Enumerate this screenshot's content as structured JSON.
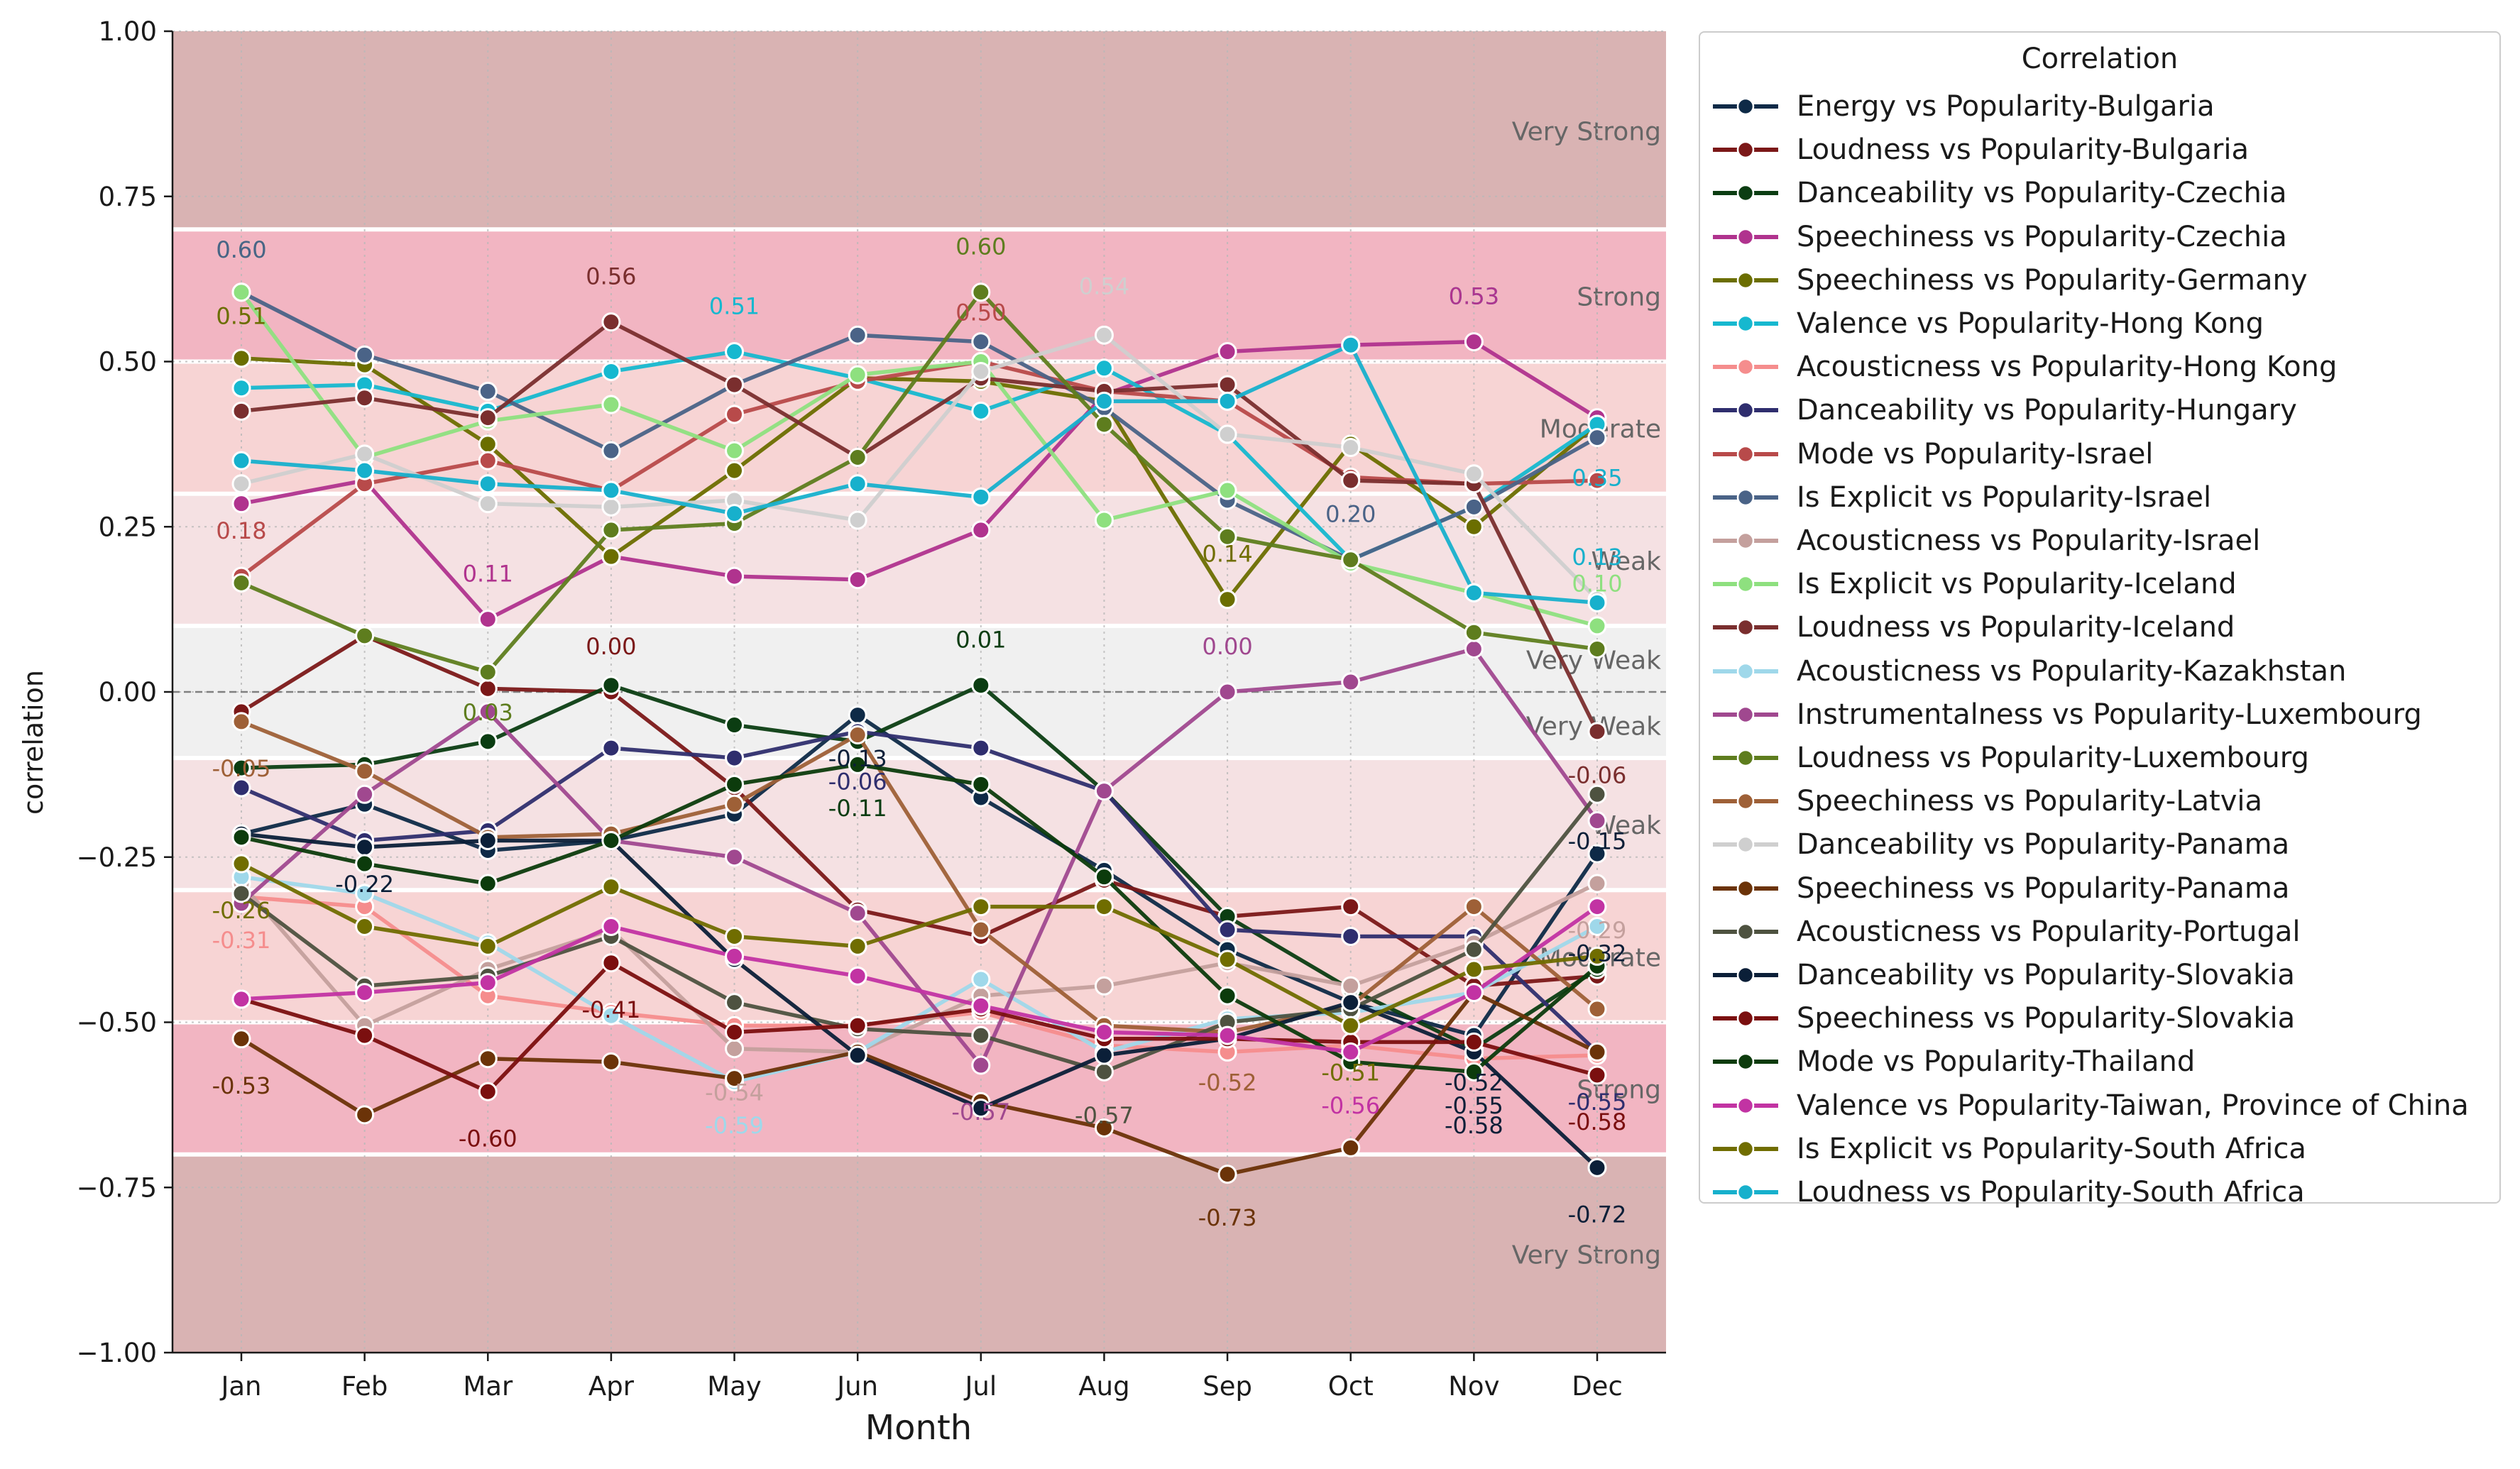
{
  "chart_data": {
    "type": "line",
    "xlabel": "Month",
    "ylabel": "correlation",
    "ylim": [
      -1.0,
      1.0
    ],
    "yticks": [
      "1.00",
      "0.75",
      "0.50",
      "0.25",
      "0.00",
      "−0.25",
      "−0.50",
      "−0.75",
      "−1.00"
    ],
    "ytick_values": [
      1.0,
      0.75,
      0.5,
      0.25,
      0.0,
      -0.25,
      -0.5,
      -0.75,
      -1.0
    ],
    "categories": [
      "Jan",
      "Feb",
      "Mar",
      "Apr",
      "May",
      "Jun",
      "Jul",
      "Aug",
      "Sep",
      "Oct",
      "Nov",
      "Dec"
    ],
    "grid": true,
    "legend_position": "right, outside plot",
    "legend_title": "Correlation",
    "bands": [
      {
        "label": "Very Strong",
        "from": 0.7,
        "to": 1.0,
        "color": "#d9b3b3"
      },
      {
        "label": "Strong",
        "from": 0.5,
        "to": 0.7,
        "color": "#f2b5c2"
      },
      {
        "label": "Moderate",
        "from": 0.3,
        "to": 0.5,
        "color": "#f7d4d4"
      },
      {
        "label": "Weak",
        "from": 0.1,
        "to": 0.3,
        "color": "#f5e1e3"
      },
      {
        "label": "Very Weak",
        "from": 0.0,
        "to": 0.1,
        "color": "#f0f0f0"
      },
      {
        "label": "Very Weak",
        "from": -0.1,
        "to": 0.0,
        "color": "#f0f0f0"
      },
      {
        "label": "Weak",
        "from": -0.3,
        "to": -0.1,
        "color": "#f5e1e3"
      },
      {
        "label": "Moderate",
        "from": -0.5,
        "to": -0.3,
        "color": "#f7d4d4"
      },
      {
        "label": "Strong",
        "from": -0.7,
        "to": -0.5,
        "color": "#f2b5c2"
      },
      {
        "label": "Very Strong",
        "from": -1.0,
        "to": -0.7,
        "color": "#d9b3b3"
      }
    ],
    "series": [
      {
        "name": "Energy vs Popularity-Bulgaria",
        "color": "#0e2a47",
        "values": [
          -0.215,
          -0.17,
          -0.24,
          -0.225,
          -0.185,
          -0.035,
          -0.16,
          -0.27,
          -0.39,
          -0.47,
          -0.52,
          -0.245
        ]
      },
      {
        "name": "Loudness vs Popularity-Bulgaria",
        "color": "#7b1818",
        "values": [
          -0.03,
          0.085,
          0.005,
          0.0,
          -0.145,
          -0.33,
          -0.37,
          -0.285,
          -0.34,
          -0.325,
          -0.445,
          -0.43
        ]
      },
      {
        "name": "Danceability vs Popularity-Czechia",
        "color": "#0b3d12",
        "values": [
          -0.115,
          -0.11,
          -0.075,
          0.01,
          -0.05,
          -0.075,
          0.01,
          -0.15,
          -0.34,
          -0.45,
          -0.54,
          -0.42
        ]
      },
      {
        "name": "Speechiness vs Popularity-Czechia",
        "color": "#b0338e",
        "values": [
          0.285,
          0.32,
          0.11,
          0.205,
          0.175,
          0.17,
          0.245,
          0.45,
          0.515,
          0.525,
          0.53,
          0.415
        ]
      },
      {
        "name": "Speechiness vs Popularity-Germany",
        "color": "#6b6e00",
        "values": [
          0.505,
          0.495,
          0.375,
          0.205,
          0.335,
          0.475,
          0.47,
          0.44,
          0.14,
          0.375,
          0.25,
          0.405
        ]
      },
      {
        "name": "Valence vs Popularity-Hong Kong",
        "color": "#16b8cf",
        "values": [
          0.46,
          0.465,
          0.425,
          0.485,
          0.515,
          0.475,
          0.425,
          0.49,
          0.39,
          0.2,
          0.28,
          0.405
        ]
      },
      {
        "name": "Acousticness vs Popularity-Hong Kong",
        "color": "#f58d8d",
        "values": [
          -0.31,
          -0.325,
          -0.46,
          -0.485,
          -0.505,
          -0.505,
          -0.485,
          -0.535,
          -0.545,
          -0.535,
          -0.555,
          -0.55
        ]
      },
      {
        "name": "Danceability vs Popularity-Hungary",
        "color": "#2f2e6e",
        "values": [
          -0.145,
          -0.225,
          -0.21,
          -0.085,
          -0.1,
          -0.06,
          -0.085,
          -0.15,
          -0.36,
          -0.37,
          -0.37,
          -0.545
        ]
      },
      {
        "name": "Mode vs Popularity-Israel",
        "color": "#b84a4a",
        "values": [
          0.175,
          0.315,
          0.35,
          0.305,
          0.42,
          0.47,
          0.5,
          0.455,
          0.44,
          0.325,
          0.315,
          0.32
        ]
      },
      {
        "name": "Is Explicit vs Popularity-Israel",
        "color": "#4a6387",
        "values": [
          0.605,
          0.51,
          0.455,
          0.365,
          0.465,
          0.54,
          0.53,
          0.43,
          0.29,
          0.2,
          0.28,
          0.385
        ]
      },
      {
        "name": "Acousticness vs Popularity-Israel",
        "color": "#c4a09d",
        "values": [
          -0.29,
          -0.505,
          -0.42,
          -0.36,
          -0.54,
          -0.545,
          -0.46,
          -0.445,
          -0.41,
          -0.445,
          -0.38,
          -0.29
        ]
      },
      {
        "name": "Is Explicit vs Popularity-Iceland",
        "color": "#8ee07f",
        "values": [
          0.605,
          0.355,
          0.41,
          0.435,
          0.365,
          0.48,
          0.5,
          0.26,
          0.305,
          0.195,
          0.15,
          0.1
        ]
      },
      {
        "name": "Loudness vs Popularity-Iceland",
        "color": "#7a2e2e",
        "values": [
          0.425,
          0.445,
          0.415,
          0.56,
          0.465,
          0.355,
          0.475,
          0.455,
          0.465,
          0.32,
          0.315,
          -0.06
        ]
      },
      {
        "name": "Acousticness vs Popularity-Kazakhstan",
        "color": "#9fd8ea",
        "values": [
          -0.28,
          -0.305,
          -0.38,
          -0.49,
          -0.59,
          -0.545,
          -0.435,
          -0.545,
          -0.495,
          -0.485,
          -0.455,
          -0.355
        ]
      },
      {
        "name": "Instrumentalness vs Popularity-Luxembourg",
        "color": "#a0488f",
        "values": [
          -0.32,
          -0.155,
          -0.03,
          -0.225,
          -0.25,
          -0.335,
          -0.565,
          -0.15,
          0.0,
          0.015,
          0.065,
          -0.195
        ]
      },
      {
        "name": "Loudness vs Popularity-Luxembourg",
        "color": "#5e7d1e",
        "values": [
          0.165,
          0.085,
          0.03,
          0.245,
          0.255,
          0.355,
          0.605,
          0.405,
          0.235,
          0.2,
          0.09,
          0.065
        ]
      },
      {
        "name": "Speechiness vs Popularity-Latvia",
        "color": "#9e6037",
        "values": [
          -0.045,
          -0.12,
          -0.22,
          -0.215,
          -0.17,
          -0.065,
          -0.36,
          -0.505,
          -0.515,
          -0.475,
          -0.325,
          -0.48
        ]
      },
      {
        "name": "Danceability vs Popularity-Panama",
        "color": "#cfcfcf",
        "values": [
          0.315,
          0.36,
          0.285,
          0.28,
          0.29,
          0.26,
          0.485,
          0.54,
          0.39,
          0.37,
          0.33,
          0.14
        ]
      },
      {
        "name": "Speechiness vs Popularity-Panama",
        "color": "#6b3308",
        "values": [
          -0.525,
          -0.64,
          -0.555,
          -0.56,
          -0.585,
          -0.545,
          -0.62,
          -0.66,
          -0.73,
          -0.69,
          -0.455,
          -0.545
        ]
      },
      {
        "name": "Acousticness vs Popularity-Portugal",
        "color": "#4e5240",
        "values": [
          -0.305,
          -0.445,
          -0.43,
          -0.37,
          -0.47,
          -0.51,
          -0.52,
          -0.575,
          -0.5,
          -0.48,
          -0.39,
          -0.155
        ]
      },
      {
        "name": "Danceability vs Popularity-Slovakia",
        "color": "#0b1f38",
        "values": [
          -0.215,
          -0.235,
          -0.225,
          -0.225,
          -0.405,
          -0.55,
          -0.63,
          -0.55,
          -0.525,
          -0.47,
          -0.545,
          -0.72
        ]
      },
      {
        "name": "Speechiness vs Popularity-Slovakia",
        "color": "#7b0f0f",
        "values": [
          -0.465,
          -0.52,
          -0.605,
          -0.41,
          -0.515,
          -0.505,
          -0.48,
          -0.525,
          -0.525,
          -0.53,
          -0.53,
          -0.58
        ]
      },
      {
        "name": "Mode vs Popularity-Thailand",
        "color": "#0c3b0c",
        "values": [
          -0.22,
          -0.26,
          -0.29,
          -0.225,
          -0.14,
          -0.11,
          -0.14,
          -0.28,
          -0.46,
          -0.56,
          -0.575,
          -0.415
        ]
      },
      {
        "name": "Valence vs Popularity-Taiwan, Province of China",
        "color": "#c233a3",
        "values": [
          -0.465,
          -0.455,
          -0.44,
          -0.355,
          -0.4,
          -0.43,
          -0.475,
          -0.515,
          -0.52,
          -0.545,
          -0.455,
          -0.325
        ]
      },
      {
        "name": "Is Explicit vs Popularity-South Africa",
        "color": "#706d00",
        "values": [
          -0.26,
          -0.355,
          -0.385,
          -0.295,
          -0.37,
          -0.385,
          -0.325,
          -0.325,
          -0.405,
          -0.505,
          -0.42,
          -0.4
        ]
      },
      {
        "name": "Loudness vs Popularity-South Africa",
        "color": "#17b0cc",
        "values": [
          0.35,
          0.335,
          0.315,
          0.305,
          0.27,
          0.315,
          0.295,
          0.44,
          0.44,
          0.525,
          0.15,
          0.135
        ]
      }
    ],
    "annotations": [
      {
        "text": "0.60",
        "x": "Jan",
        "y": 0.67,
        "color": "#8ee07f"
      },
      {
        "text": "0.60",
        "x": "Jan",
        "y": 0.67,
        "color": "#4a6387"
      },
      {
        "text": "0.51",
        "x": "Jan",
        "y": 0.57,
        "color": "#6b6e00"
      },
      {
        "text": "0.18",
        "x": "Jan",
        "y": 0.245,
        "color": "#b84a4a"
      },
      {
        "text": "-0.05",
        "x": "Jan",
        "y": -0.115,
        "color": "#9e6037"
      },
      {
        "text": "-0.26",
        "x": "Jan",
        "y": -0.33,
        "color": "#706d00"
      },
      {
        "text": "-0.31",
        "x": "Jan",
        "y": -0.375,
        "color": "#f58d8d"
      },
      {
        "text": "-0.53",
        "x": "Jan",
        "y": -0.595,
        "color": "#6b3308"
      },
      {
        "text": "-0.22",
        "x": "Feb",
        "y": -0.29,
        "color": "#0b1f38"
      },
      {
        "text": "0.11",
        "x": "Mar",
        "y": 0.18,
        "color": "#b0338e"
      },
      {
        "text": "0.03",
        "x": "Mar",
        "y": -0.03,
        "color": "#5e7d1e"
      },
      {
        "text": "-0.60",
        "x": "Mar",
        "y": -0.675,
        "color": "#7b0f0f"
      },
      {
        "text": "0.56",
        "x": "Apr",
        "y": 0.63,
        "color": "#7a2e2e"
      },
      {
        "text": "0.00",
        "x": "Apr",
        "y": 0.07,
        "color": "#7b1818"
      },
      {
        "text": "-0.41",
        "x": "Apr",
        "y": -0.48,
        "color": "#7b0f0f"
      },
      {
        "text": "0.51",
        "x": "May",
        "y": 0.585,
        "color": "#16b8cf"
      },
      {
        "text": "-0.54",
        "x": "May",
        "y": -0.605,
        "color": "#c4a09d"
      },
      {
        "text": "-0.59",
        "x": "May",
        "y": -0.655,
        "color": "#9fd8ea"
      },
      {
        "text": "-0.13",
        "x": "Jun",
        "y": -0.1,
        "color": "#0b1f38"
      },
      {
        "text": "-0.06",
        "x": "Jun",
        "y": -0.135,
        "color": "#2f2e6e"
      },
      {
        "text": "-0.11",
        "x": "Jun",
        "y": -0.175,
        "color": "#0b3d12"
      },
      {
        "text": "0.60",
        "x": "Jul",
        "y": 0.675,
        "color": "#5e7d1e"
      },
      {
        "text": "0.50",
        "x": "Jul",
        "y": 0.575,
        "color": "#b84a4a"
      },
      {
        "text": "0.01",
        "x": "Jul",
        "y": 0.08,
        "color": "#0b3d12"
      },
      {
        "text": "-0.57",
        "x": "Jul",
        "y": -0.635,
        "color": "#a0488f"
      },
      {
        "text": "0.54",
        "x": "Aug",
        "y": 0.615,
        "color": "#cfcfcf"
      },
      {
        "text": "-0.57",
        "x": "Aug",
        "y": -0.64,
        "color": "#4e5240"
      },
      {
        "text": "0.14",
        "x": "Sep",
        "y": 0.21,
        "color": "#706d00"
      },
      {
        "text": "0.00",
        "x": "Sep",
        "y": 0.07,
        "color": "#a0488f"
      },
      {
        "text": "-0.52",
        "x": "Sep",
        "y": -0.59,
        "color": "#9e6037"
      },
      {
        "text": "-0.73",
        "x": "Sep",
        "y": -0.795,
        "color": "#6b3308"
      },
      {
        "text": "0.20",
        "x": "Oct",
        "y": 0.27,
        "color": "#4a6387"
      },
      {
        "text": "-0.51",
        "x": "Oct",
        "y": -0.575,
        "color": "#706d00"
      },
      {
        "text": "-0.56",
        "x": "Oct",
        "y": -0.625,
        "color": "#c233a3"
      },
      {
        "text": "0.53",
        "x": "Nov",
        "y": 0.6,
        "color": "#16b8cf"
      },
      {
        "text": "0.53",
        "x": "Nov",
        "y": 0.6,
        "color": "#b0338e"
      },
      {
        "text": "-0.52",
        "x": "Nov",
        "y": -0.59,
        "color": "#0b1f38"
      },
      {
        "text": "-0.55",
        "x": "Nov",
        "y": -0.625,
        "color": "#0b1f38"
      },
      {
        "text": "-0.58",
        "x": "Nov",
        "y": -0.655,
        "color": "#0b1f38"
      },
      {
        "text": "0.35",
        "x": "Dec",
        "y": 0.325,
        "color": "#17b0cc"
      },
      {
        "text": "0.13",
        "x": "Dec",
        "y": 0.205,
        "color": "#17b0cc"
      },
      {
        "text": "0.10",
        "x": "Dec",
        "y": 0.165,
        "color": "#8ee07f"
      },
      {
        "text": "-0.06",
        "x": "Dec",
        "y": -0.125,
        "color": "#7a2e2e"
      },
      {
        "text": "-0.15",
        "x": "Dec",
        "y": -0.225,
        "color": "#0b1f38"
      },
      {
        "text": "-0.29",
        "x": "Dec",
        "y": -0.36,
        "color": "#c4a09d"
      },
      {
        "text": "-0.32",
        "x": "Dec",
        "y": -0.395,
        "color": "#0b1f38"
      },
      {
        "text": "-0.55",
        "x": "Dec",
        "y": -0.62,
        "color": "#2f2e6e"
      },
      {
        "text": "-0.58",
        "x": "Dec",
        "y": -0.65,
        "color": "#7b0f0f"
      },
      {
        "text": "-0.72",
        "x": "Dec",
        "y": -0.79,
        "color": "#0b1f38"
      }
    ]
  }
}
